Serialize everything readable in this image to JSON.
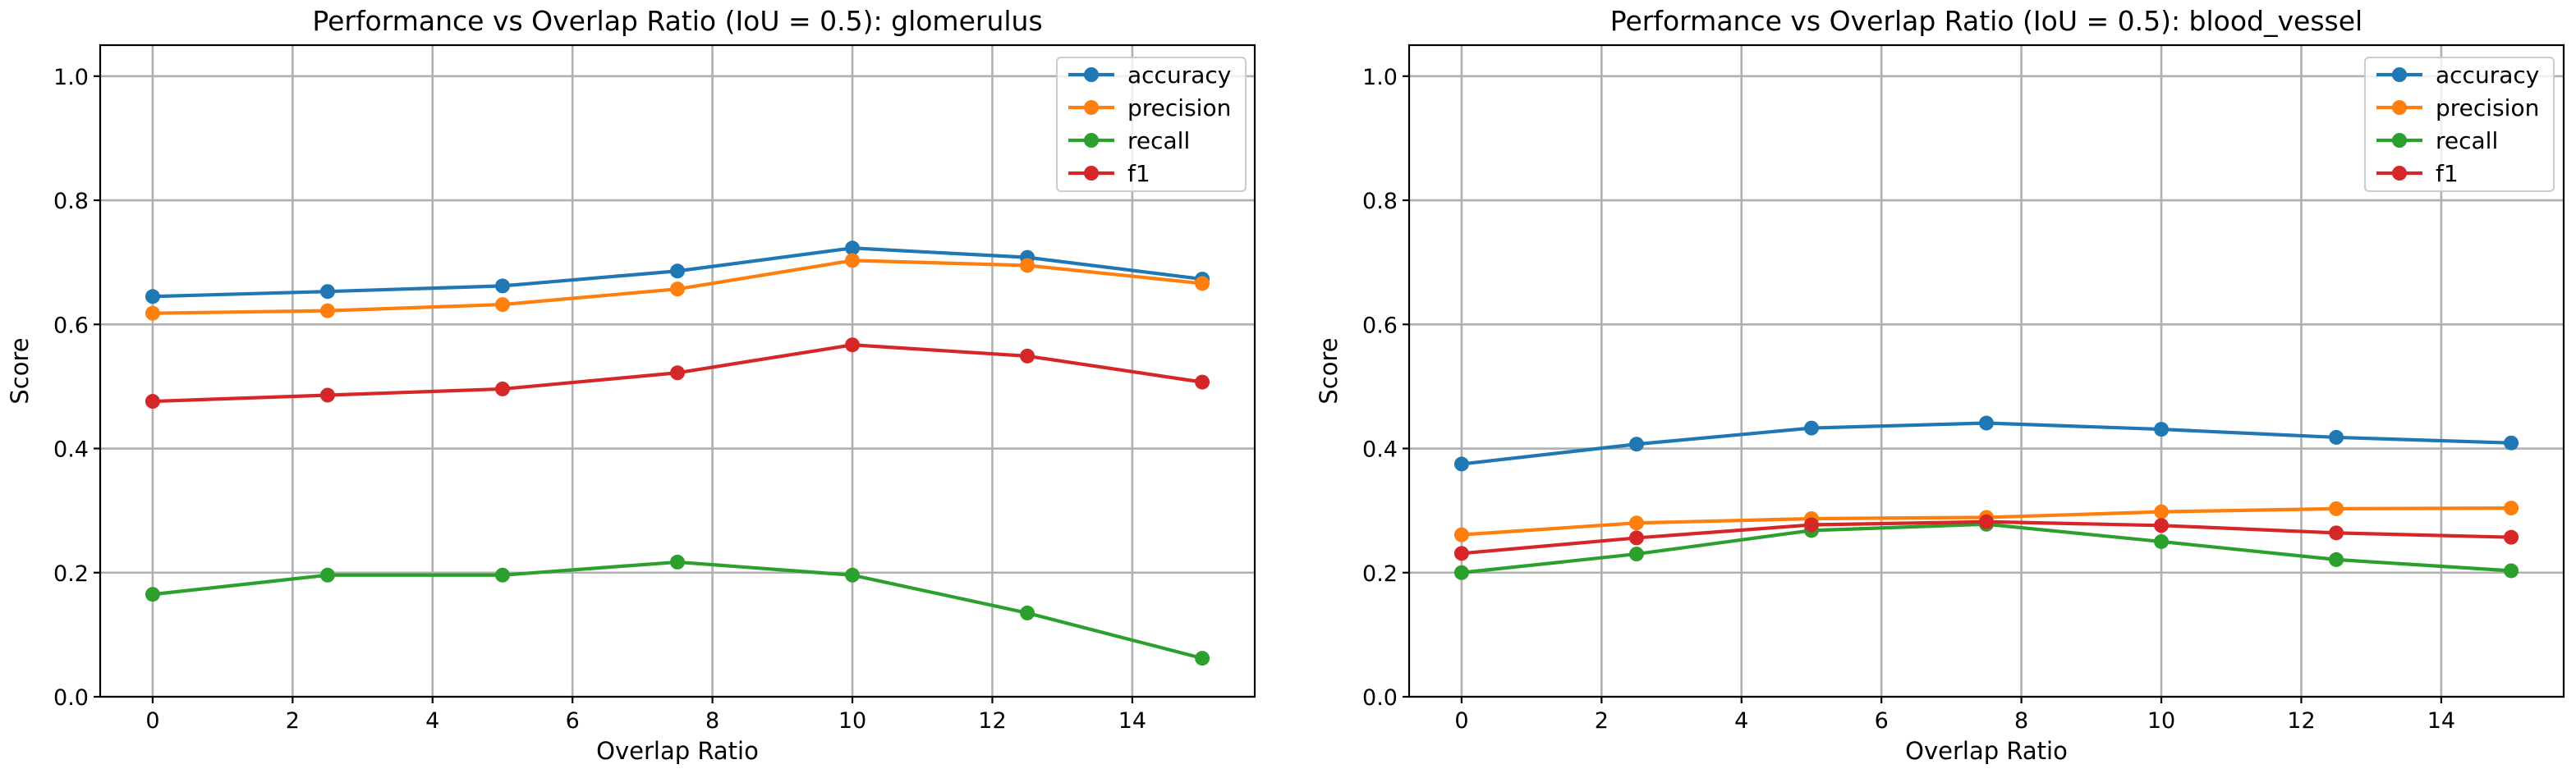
{
  "chart_data": [
    {
      "type": "line",
      "title": "Performance vs Overlap Ratio (IoU = 0.5): glomerulus",
      "xlabel": "Overlap Ratio",
      "ylabel": "Score",
      "x": [
        0,
        2.5,
        5,
        7.5,
        10,
        12.5,
        15
      ],
      "xlim": [
        -0.75,
        15.75
      ],
      "ylim": [
        0.0,
        1.05
      ],
      "xticks": [
        0,
        2,
        4,
        6,
        8,
        10,
        12,
        14
      ],
      "yticks": [
        0.0,
        0.2,
        0.4,
        0.6,
        0.8,
        1.0
      ],
      "xtick_labels": [
        "0",
        "2",
        "4",
        "6",
        "8",
        "10",
        "12",
        "14"
      ],
      "ytick_labels": [
        "0.0",
        "0.2",
        "0.4",
        "0.6",
        "0.8",
        "1.0"
      ],
      "grid": true,
      "legend_position": "top-right",
      "series": [
        {
          "name": "accuracy",
          "color": "#1f77b4",
          "values": [
            0.645,
            0.653,
            0.662,
            0.686,
            0.723,
            0.708,
            0.673
          ]
        },
        {
          "name": "precision",
          "color": "#ff7f0e",
          "values": [
            0.618,
            0.622,
            0.632,
            0.657,
            0.703,
            0.695,
            0.666
          ]
        },
        {
          "name": "recall",
          "color": "#2ca02c",
          "values": [
            0.165,
            0.196,
            0.196,
            0.217,
            0.196,
            0.135,
            0.062
          ]
        },
        {
          "name": "f1",
          "color": "#d62728",
          "values": [
            0.476,
            0.486,
            0.496,
            0.522,
            0.567,
            0.549,
            0.507
          ]
        }
      ]
    },
    {
      "type": "line",
      "title": "Performance vs Overlap Ratio (IoU = 0.5): blood_vessel",
      "xlabel": "Overlap Ratio",
      "ylabel": "Score",
      "x": [
        0,
        2.5,
        5,
        7.5,
        10,
        12.5,
        15
      ],
      "xlim": [
        -0.75,
        15.75
      ],
      "ylim": [
        0.0,
        1.05
      ],
      "xticks": [
        0,
        2,
        4,
        6,
        8,
        10,
        12,
        14
      ],
      "yticks": [
        0.0,
        0.2,
        0.4,
        0.6,
        0.8,
        1.0
      ],
      "xtick_labels": [
        "0",
        "2",
        "4",
        "6",
        "8",
        "10",
        "12",
        "14"
      ],
      "ytick_labels": [
        "0.0",
        "0.2",
        "0.4",
        "0.6",
        "0.8",
        "1.0"
      ],
      "grid": true,
      "legend_position": "top-right",
      "series": [
        {
          "name": "accuracy",
          "color": "#1f77b4",
          "values": [
            0.375,
            0.407,
            0.433,
            0.441,
            0.431,
            0.418,
            0.409
          ]
        },
        {
          "name": "precision",
          "color": "#ff7f0e",
          "values": [
            0.261,
            0.28,
            0.287,
            0.289,
            0.298,
            0.303,
            0.304
          ]
        },
        {
          "name": "recall",
          "color": "#2ca02c",
          "values": [
            0.2,
            0.23,
            0.268,
            0.278,
            0.25,
            0.221,
            0.203
          ]
        },
        {
          "name": "f1",
          "color": "#d62728",
          "values": [
            0.231,
            0.256,
            0.277,
            0.282,
            0.276,
            0.264,
            0.257
          ]
        }
      ]
    }
  ]
}
